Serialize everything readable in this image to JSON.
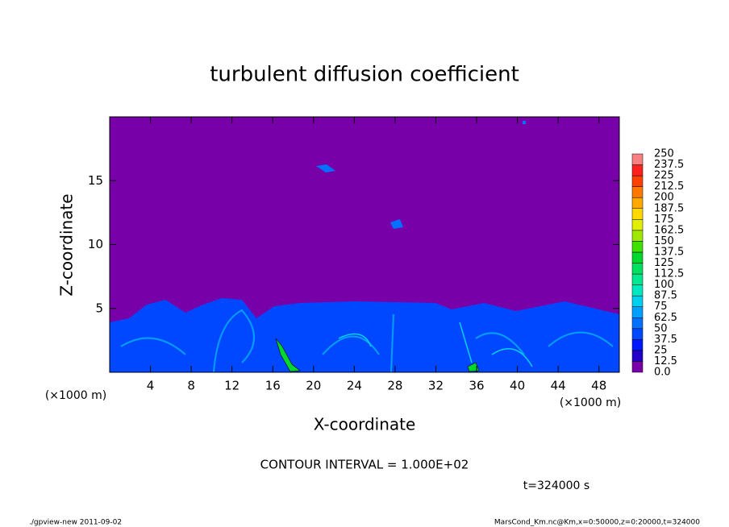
{
  "chart_data": {
    "type": "heatmap",
    "title": "turbulent diffusion coefficient",
    "xlabel": "X-coordinate",
    "ylabel": "Z-coordinate",
    "x_unit": "(×1000 m)",
    "y_unit": "(×1000 m)",
    "xlim": [
      0,
      50
    ],
    "ylim": [
      0,
      20
    ],
    "xticks": [
      4,
      8,
      12,
      16,
      20,
      24,
      28,
      32,
      36,
      40,
      44,
      48
    ],
    "yticks": [
      5,
      10,
      15
    ],
    "contour_note": "CONTOUR INTERVAL = 1.000E+02",
    "time_note": "t=324000 s",
    "footer_left": "./gpview-new  2011-09-02",
    "footer_right": "MarsCond_Km.nc@Km,x=0:50000,z=0:20000,t=324000",
    "colorbar": {
      "levels": [
        {
          "value": 0,
          "label": "0.0"
        },
        12.5,
        25,
        37.5,
        50,
        62.5,
        75,
        87.5,
        100,
        112.5,
        125,
        137.5,
        150,
        162.5,
        175,
        187.5,
        200,
        212.5,
        225,
        237.5,
        250
      ],
      "colors": [
        "#7800a8",
        "#2200c8",
        "#0018ff",
        "#0048ff",
        "#0070ff",
        "#00a0ff",
        "#00d0f0",
        "#00e8c0",
        "#00e890",
        "#00e060",
        "#00d830",
        "#40e000",
        "#a0e800",
        "#e0f000",
        "#ffd800",
        "#ffa800",
        "#ff7800",
        "#ff4000",
        "#ff2020",
        "#f88080"
      ]
    }
  }
}
